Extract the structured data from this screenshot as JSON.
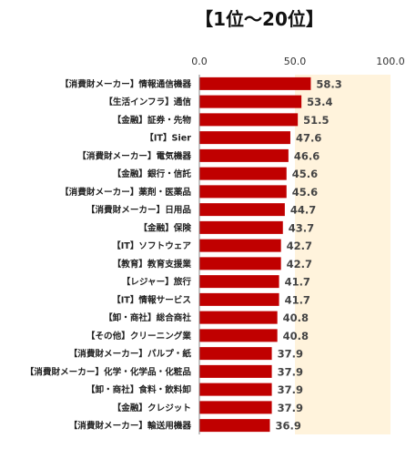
{
  "chart_data": {
    "type": "bar",
    "orientation": "horizontal",
    "title": "【1位〜20位】",
    "xlabel": "",
    "ylabel": "",
    "xlim": [
      0,
      100
    ],
    "ticks": [
      "0.0",
      "50.0",
      "100.0"
    ],
    "tick_values": [
      0,
      50,
      100
    ],
    "grid": false,
    "legend": "none",
    "categories": [
      "【消費財メーカー】情報通信機器",
      "【生活インフラ】通信",
      "【金融】証券・先物",
      "【IT】Sier",
      "【消費財メーカー】電気機器",
      "【金融】銀行・信託",
      "【消費財メーカー】薬剤・医薬品",
      "【消費財メーカー】日用品",
      "【金融】保険",
      "【IT】ソフトウェア",
      "【教育】教育支援業",
      "【レジャー】旅行",
      "【IT】情報サービス",
      "【卸・商社】総合商社",
      "【その他】クリーニング業",
      "【消費財メーカー】パルプ・紙",
      "【消費財メーカー】化学・化学品・化粧品",
      "【卸・商社】食料・飲料卸",
      "【金融】クレジット",
      "【消費財メーカー】輸送用機器"
    ],
    "values": [
      58.3,
      53.4,
      51.5,
      47.6,
      46.6,
      45.6,
      45.6,
      44.7,
      43.7,
      42.7,
      42.7,
      41.7,
      41.7,
      40.8,
      40.8,
      37.9,
      37.9,
      37.9,
      37.9,
      36.9
    ],
    "value_labels": [
      "58.3",
      "53.4",
      "51.5",
      "47.6",
      "46.6",
      "45.6",
      "45.6",
      "44.7",
      "43.7",
      "42.7",
      "42.7",
      "41.7",
      "41.7",
      "40.8",
      "40.8",
      "37.9",
      "37.9",
      "37.9",
      "37.9",
      "36.9"
    ],
    "colors": {
      "bar": "#c00000",
      "upper_band": "#fff3dc",
      "axis": "#888888",
      "value_label": "#444444"
    }
  }
}
